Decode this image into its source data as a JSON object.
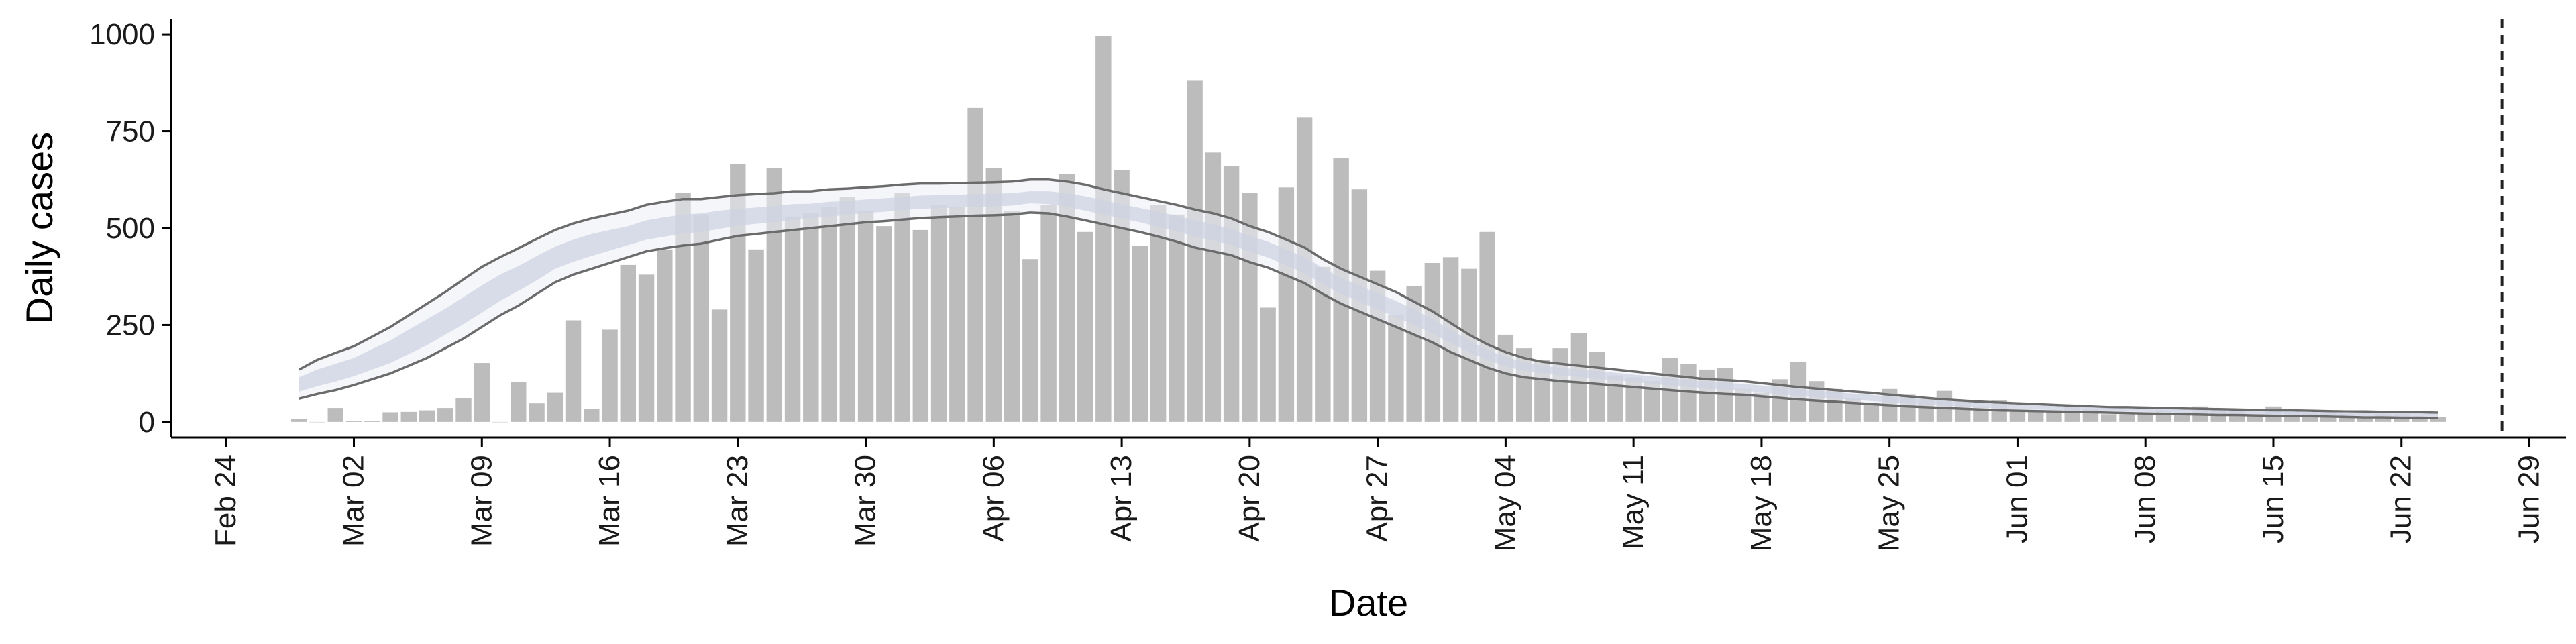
{
  "chart_data": {
    "type": "bar",
    "xlabel": "Date",
    "ylabel": "Daily cases",
    "ylim": [
      -40,
      1040
    ],
    "xlim": [
      "2020-02-21",
      "2020-07-01"
    ],
    "grid": false,
    "legend": "none",
    "yticks": [
      0,
      250,
      500,
      750,
      1000
    ],
    "xticks": [
      {
        "date": "2020-02-24",
        "label": "Feb 24"
      },
      {
        "date": "2020-03-02",
        "label": "Mar 02"
      },
      {
        "date": "2020-03-09",
        "label": "Mar 09"
      },
      {
        "date": "2020-03-16",
        "label": "Mar 16"
      },
      {
        "date": "2020-03-23",
        "label": "Mar 23"
      },
      {
        "date": "2020-03-30",
        "label": "Mar 30"
      },
      {
        "date": "2020-04-06",
        "label": "Apr 06"
      },
      {
        "date": "2020-04-13",
        "label": "Apr 13"
      },
      {
        "date": "2020-04-20",
        "label": "Apr 20"
      },
      {
        "date": "2020-04-27",
        "label": "Apr 27"
      },
      {
        "date": "2020-05-04",
        "label": "May 04"
      },
      {
        "date": "2020-05-11",
        "label": "May 11"
      },
      {
        "date": "2020-05-18",
        "label": "May 18"
      },
      {
        "date": "2020-05-25",
        "label": "May 25"
      },
      {
        "date": "2020-06-01",
        "label": "Jun 01"
      },
      {
        "date": "2020-06-08",
        "label": "Jun 08"
      },
      {
        "date": "2020-06-15",
        "label": "Jun 15"
      },
      {
        "date": "2020-06-22",
        "label": "Jun 22"
      },
      {
        "date": "2020-06-29",
        "label": "Jun 29"
      }
    ],
    "bars": {
      "start_date": "2020-02-28",
      "values": [
        8,
        0,
        36,
        2,
        2,
        25,
        26,
        30,
        36,
        62,
        152,
        0,
        103,
        48,
        75,
        262,
        33,
        238,
        405,
        380,
        445,
        590,
        535,
        290,
        665,
        445,
        655,
        530,
        540,
        555,
        580,
        545,
        505,
        590,
        495,
        560,
        555,
        810,
        655,
        545,
        420,
        560,
        640,
        490,
        995,
        650,
        455,
        560,
        535,
        880,
        695,
        660,
        590,
        295,
        605,
        785,
        400,
        680,
        600,
        390,
        275,
        350,
        410,
        425,
        395,
        490,
        225,
        190,
        160,
        190,
        230,
        180,
        120,
        115,
        105,
        165,
        150,
        135,
        140,
        85,
        75,
        110,
        155,
        105,
        85,
        60,
        50,
        85,
        70,
        60,
        80,
        55,
        40,
        55,
        30,
        30,
        30,
        45,
        35,
        20,
        20,
        25,
        30,
        25,
        40,
        35,
        30,
        20,
        40,
        30,
        25,
        25,
        20,
        10,
        20,
        20,
        15,
        12
      ]
    },
    "series": [
      {
        "kind": "band-outer",
        "color": "#6b6b6b",
        "start_date": "2020-02-28",
        "upper": [
          135,
          160,
          178,
          195,
          220,
          245,
          275,
          305,
          335,
          368,
          400,
          425,
          448,
          472,
          495,
          512,
          525,
          535,
          545,
          560,
          568,
          575,
          575,
          580,
          585,
          588,
          590,
          595,
          595,
          600,
          602,
          605,
          608,
          612,
          615,
          615,
          616,
          617,
          618,
          620,
          625,
          625,
          620,
          612,
          600,
          590,
          580,
          570,
          560,
          548,
          538,
          525,
          505,
          490,
          470,
          450,
          420,
          395,
          375,
          355,
          335,
          310,
          285,
          255,
          225,
          200,
          180,
          165,
          155,
          150,
          145,
          140,
          135,
          130,
          125,
          120,
          115,
          110,
          108,
          105,
          100,
          95,
          90,
          86,
          82,
          78,
          75,
          70,
          66,
          62,
          58,
          55,
          52,
          50,
          48,
          46,
          44,
          42,
          40,
          38,
          38,
          37,
          36,
          35,
          34,
          33,
          32,
          31,
          30,
          30,
          29,
          28,
          27,
          27,
          26,
          25,
          25,
          24
        ],
        "lower": [
          60,
          72,
          82,
          95,
          110,
          125,
          145,
          165,
          190,
          215,
          245,
          275,
          300,
          330,
          360,
          380,
          395,
          410,
          425,
          440,
          448,
          455,
          460,
          470,
          480,
          485,
          490,
          495,
          500,
          505,
          510,
          515,
          518,
          522,
          526,
          528,
          530,
          532,
          533,
          535,
          540,
          538,
          530,
          520,
          510,
          500,
          490,
          478,
          465,
          450,
          440,
          430,
          412,
          398,
          378,
          358,
          330,
          305,
          285,
          265,
          245,
          225,
          205,
          180,
          160,
          140,
          125,
          115,
          110,
          105,
          102,
          98,
          94,
          90,
          86,
          82,
          78,
          75,
          72,
          70,
          66,
          62,
          58,
          55,
          52,
          49,
          46,
          43,
          40,
          38,
          36,
          34,
          32,
          30,
          29,
          28,
          27,
          26,
          25,
          24,
          23,
          22,
          21,
          20,
          19,
          18,
          18,
          17,
          16,
          15,
          15,
          14,
          13,
          12,
          12,
          11,
          11,
          10
        ]
      },
      {
        "kind": "band-inner",
        "color": "#cdd3e3",
        "start_date": "2020-02-28",
        "upper": [
          115,
          135,
          150,
          165,
          188,
          210,
          238,
          265,
          292,
          322,
          352,
          380,
          402,
          428,
          452,
          470,
          485,
          495,
          505,
          520,
          528,
          535,
          538,
          545,
          550,
          553,
          557,
          562,
          563,
          568,
          570,
          574,
          577,
          580,
          584,
          585,
          586,
          588,
          589,
          590,
          595,
          595,
          590,
          582,
          572,
          562,
          552,
          542,
          532,
          520,
          510,
          498,
          480,
          465,
          445,
          425,
          397,
          372,
          352,
          332,
          312,
          290,
          265,
          238,
          210,
          186,
          168,
          154,
          145,
          140,
          135,
          131,
          127,
          122,
          118,
          113,
          108,
          104,
          101,
          98,
          94,
          89,
          85,
          81,
          77,
          73,
          70,
          65,
          62,
          58,
          55,
          52,
          49,
          47,
          45,
          43,
          41,
          39,
          38,
          36,
          35,
          34,
          33,
          32,
          31,
          30,
          29,
          28,
          27,
          27,
          26,
          25,
          25,
          24,
          23,
          22,
          22,
          21
        ],
        "lower": [
          78,
          92,
          104,
          118,
          135,
          152,
          175,
          198,
          225,
          252,
          282,
          312,
          338,
          365,
          395,
          413,
          428,
          442,
          456,
          470,
          478,
          486,
          490,
          498,
          506,
          511,
          515,
          521,
          525,
          530,
          534,
          539,
          542,
          546,
          550,
          551,
          553,
          555,
          556,
          558,
          564,
          562,
          555,
          545,
          535,
          525,
          515,
          503,
          492,
          478,
          468,
          456,
          439,
          424,
          404,
          384,
          355,
          330,
          310,
          290,
          270,
          250,
          228,
          203,
          180,
          160,
          143,
          132,
          125,
          120,
          116,
          111,
          107,
          103,
          98,
          94,
          90,
          86,
          83,
          81,
          76,
          71,
          67,
          63,
          60,
          57,
          54,
          50,
          47,
          44,
          42,
          40,
          37,
          35,
          34,
          32,
          31,
          30,
          29,
          28,
          27,
          26,
          25,
          24,
          23,
          22,
          21,
          20,
          19,
          19,
          18,
          17,
          16,
          15,
          15,
          14,
          14,
          13
        ]
      }
    ],
    "vline": {
      "date": "2020-06-27",
      "style": "dashed"
    }
  },
  "colors": {
    "bar": "#bcbcbc",
    "band_outer_fill": "#eceef5",
    "band_outer_stroke": "#6b6b6b",
    "band_inner_fill": "#cdd3e3",
    "axis": "#000000"
  }
}
